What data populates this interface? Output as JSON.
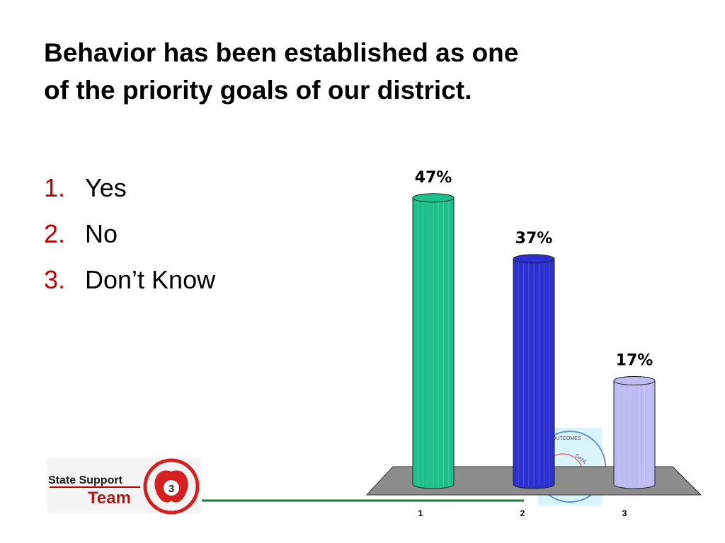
{
  "title": [
    "Behavior has been established as one",
    "of the priority goals of our district."
  ],
  "options": [
    {
      "number": "1.",
      "text": "Yes"
    },
    {
      "number": "2.",
      "text": "No"
    },
    {
      "number": "3.",
      "text": "Don’t Know"
    }
  ],
  "chart_data": {
    "type": "bar",
    "categories": [
      "1",
      "2",
      "3"
    ],
    "values": [
      47,
      37,
      17
    ],
    "value_labels": [
      "47%",
      "37%",
      "17%"
    ],
    "colors": [
      "#1dbf8c",
      "#2b2fcf",
      "#bcbcf2"
    ]
  },
  "logo": {
    "line1": "State Support",
    "line2": "Team",
    "badge": "3",
    "watermark": [
      "OUTCOMES",
      "DATA"
    ]
  }
}
